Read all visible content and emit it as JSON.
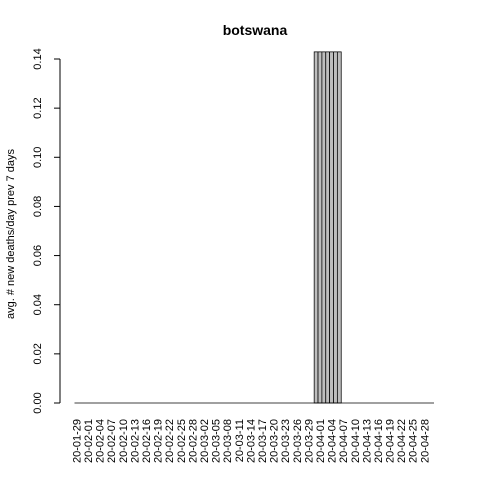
{
  "chart_data": {
    "type": "bar",
    "title": "botswana",
    "xlabel": "",
    "ylabel": "avg. # new deaths/day prev  7  days",
    "ylim": [
      0,
      0.14
    ],
    "yticks": [
      "0.00",
      "0.02",
      "0.04",
      "0.06",
      "0.08",
      "0.10",
      "0.12",
      "0.14"
    ],
    "ytick_values": [
      0,
      0.02,
      0.04,
      0.06,
      0.08,
      0.1,
      0.12,
      0.14
    ],
    "xtick_labels": [
      "20-01-29",
      "20-02-01",
      "20-02-04",
      "20-02-07",
      "20-02-10",
      "20-02-13",
      "20-02-16",
      "20-02-19",
      "20-02-22",
      "20-02-25",
      "20-02-28",
      "20-03-02",
      "20-03-05",
      "20-03-08",
      "20-03-11",
      "20-03-14",
      "20-03-17",
      "20-03-20",
      "20-03-23",
      "20-03-26",
      "20-03-29",
      "20-04-01",
      "20-04-04",
      "20-04-07",
      "20-04-10",
      "20-04-13",
      "20-04-16",
      "20-04-19",
      "20-04-22",
      "20-04-25",
      "20-04-28"
    ],
    "bar_color": "#bebebe",
    "start_date": "2020-01-29",
    "values": [
      0,
      0,
      0,
      0,
      0,
      0,
      0,
      0,
      0,
      0,
      0,
      0,
      0,
      0,
      0,
      0,
      0,
      0,
      0,
      0,
      0,
      0,
      0,
      0,
      0,
      0,
      0,
      0,
      0,
      0,
      0,
      0,
      0,
      0,
      0,
      0,
      0,
      0,
      0,
      0,
      0,
      0,
      0,
      0,
      0,
      0,
      0,
      0,
      0,
      0,
      0,
      0,
      0,
      0,
      0,
      0,
      0,
      0,
      0,
      0,
      0,
      0,
      0.1429,
      0.1429,
      0.1429,
      0.1429,
      0.1429,
      0.1429,
      0.1429,
      0,
      0,
      0,
      0,
      0,
      0,
      0,
      0,
      0,
      0,
      0,
      0,
      0,
      0,
      0,
      0,
      0,
      0,
      0,
      0,
      0,
      0,
      0,
      0
    ]
  }
}
